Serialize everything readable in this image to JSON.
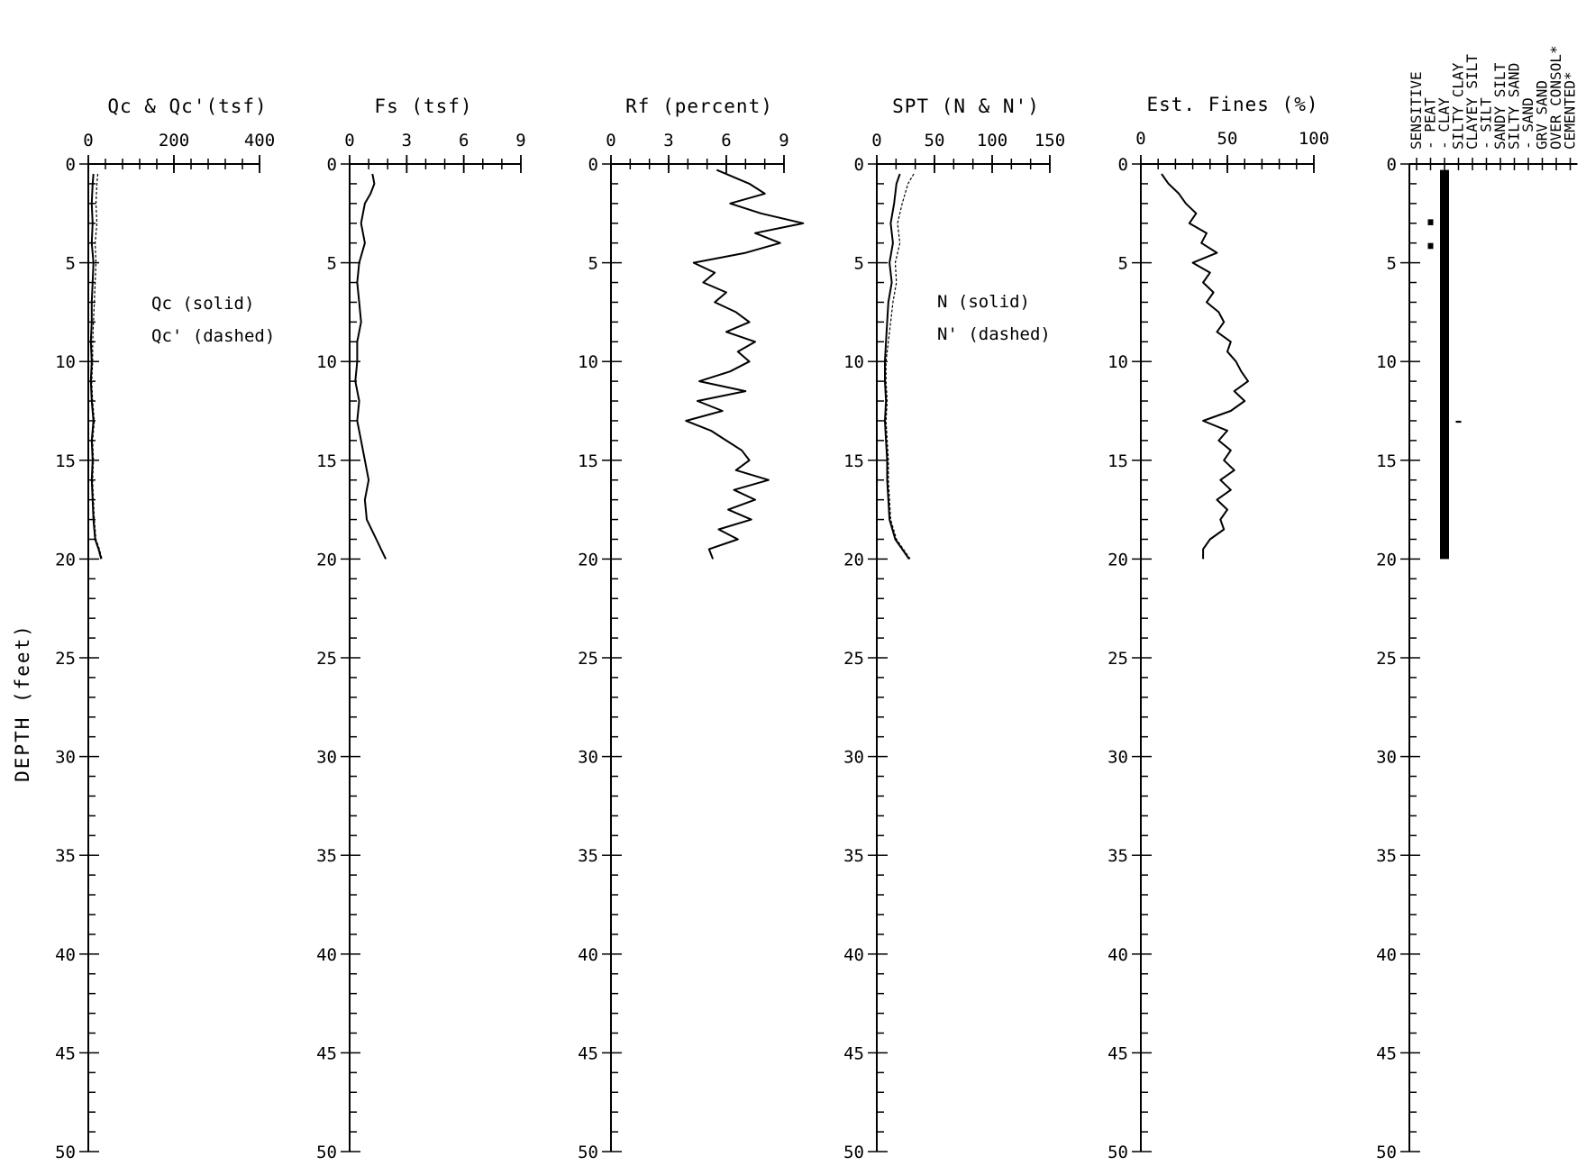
{
  "figure": {
    "depth_label": "DEPTH (feet)",
    "depth_ticks": [
      0,
      5,
      10,
      15,
      20,
      25,
      30,
      35,
      40,
      45,
      50
    ],
    "depth_range": [
      0,
      50
    ]
  },
  "chart_data": [
    {
      "type": "line",
      "title": "Qc & Qc'(tsf)",
      "xlim": [
        0,
        400
      ],
      "x_ticks": [
        "0",
        "200",
        "400"
      ],
      "legend": [
        "Qc (solid)",
        "Qc' (dashed)"
      ],
      "series": [
        {
          "name": "Qc (solid)",
          "style": "solid",
          "depth": [
            0.5,
            1,
            2,
            3,
            4,
            5,
            6,
            7,
            8,
            9,
            10,
            11,
            12,
            13,
            14,
            15,
            16,
            17,
            18,
            19,
            19.5,
            20
          ],
          "x": [
            12,
            10,
            8,
            10,
            8,
            12,
            10,
            8,
            8,
            6,
            8,
            6,
            8,
            12,
            8,
            10,
            8,
            10,
            12,
            16,
            24,
            30
          ]
        },
        {
          "name": "Qc' (dashed)",
          "style": "dashed",
          "depth": [
            0.5,
            1,
            2,
            3,
            4,
            5,
            6,
            7,
            8,
            9,
            10,
            11,
            12,
            13,
            14,
            15,
            16,
            17,
            18,
            19,
            19.5,
            20
          ],
          "x": [
            22,
            20,
            18,
            20,
            16,
            18,
            16,
            14,
            12,
            10,
            10,
            8,
            10,
            14,
            10,
            12,
            10,
            12,
            14,
            18,
            26,
            32
          ]
        }
      ]
    },
    {
      "type": "line",
      "title": "Fs (tsf)",
      "xlim": [
        0,
        9
      ],
      "x_ticks": [
        "0",
        "3",
        "6",
        "9"
      ],
      "series": [
        {
          "name": "",
          "style": "solid",
          "depth": [
            0.5,
            1,
            1.5,
            2,
            3,
            4,
            5,
            6,
            7,
            8,
            9,
            10,
            11,
            12,
            13,
            14,
            15,
            16,
            17,
            18,
            19,
            20
          ],
          "x": [
            1.2,
            1.3,
            1.1,
            0.8,
            0.6,
            0.8,
            0.5,
            0.4,
            0.5,
            0.6,
            0.4,
            0.4,
            0.3,
            0.5,
            0.4,
            0.6,
            0.8,
            1.0,
            0.8,
            0.9,
            1.4,
            1.9
          ]
        }
      ]
    },
    {
      "type": "line",
      "title": "Rf (percent)",
      "xlim": [
        0,
        9
      ],
      "x_ticks": [
        "0",
        "3",
        "6",
        "9"
      ],
      "series": [
        {
          "name": "",
          "style": "solid",
          "depth": [
            0.3,
            1,
            1.5,
            2,
            2.5,
            3,
            3.5,
            4,
            4.5,
            5,
            5.5,
            6,
            6.5,
            7,
            7.5,
            8,
            8.5,
            9,
            9.5,
            10,
            10.5,
            11,
            11.5,
            12,
            12.5,
            13,
            13.5,
            14,
            14.5,
            15,
            15.5,
            16,
            16.5,
            17,
            17.5,
            18,
            18.5,
            19,
            19.5,
            20
          ],
          "x": [
            5.5,
            7.2,
            8.0,
            6.2,
            7.8,
            10.0,
            7.5,
            8.8,
            7.0,
            4.3,
            5.4,
            4.8,
            6.0,
            5.4,
            6.5,
            7.2,
            6.0,
            7.5,
            6.6,
            7.2,
            6.2,
            4.6,
            7.0,
            4.5,
            5.8,
            3.9,
            5.2,
            6.0,
            6.8,
            7.2,
            6.5,
            8.2,
            6.4,
            7.5,
            6.1,
            7.3,
            5.6,
            6.6,
            5.1,
            5.3
          ]
        }
      ]
    },
    {
      "type": "line",
      "title": "SPT (N & N')",
      "xlim": [
        0,
        150
      ],
      "x_ticks": [
        "0",
        "50",
        "100",
        "150"
      ],
      "legend": [
        "N (solid)",
        "N' (dashed)"
      ],
      "series": [
        {
          "name": "N (solid)",
          "style": "solid",
          "depth": [
            0.5,
            1,
            2,
            3,
            4,
            5,
            6,
            7,
            8,
            9,
            10,
            11,
            12,
            13,
            14,
            15,
            16,
            17,
            18,
            19,
            19.5,
            20
          ],
          "x": [
            20,
            17,
            15,
            12,
            14,
            11,
            13,
            10,
            9,
            8,
            7,
            7,
            8,
            7,
            8,
            9,
            9,
            10,
            11,
            16,
            22,
            28
          ]
        },
        {
          "name": "N' (dashed)",
          "style": "dashed",
          "depth": [
            0.5,
            1,
            2,
            3,
            4,
            5,
            6,
            7,
            8,
            9,
            10,
            11,
            12,
            13,
            14,
            15,
            16,
            17,
            18,
            19,
            19.5,
            20
          ],
          "x": [
            32,
            27,
            22,
            18,
            20,
            16,
            17,
            14,
            12,
            10,
            8,
            8,
            9,
            8,
            9,
            10,
            10,
            11,
            12,
            17,
            23,
            29
          ]
        }
      ]
    },
    {
      "type": "line",
      "title": "Est. Fines (%)",
      "xlim": [
        0,
        100
      ],
      "x_ticks": [
        "0",
        "50",
        "100"
      ],
      "series": [
        {
          "name": "",
          "style": "solid",
          "depth": [
            0.5,
            1,
            1.5,
            2,
            2.5,
            3,
            3.5,
            4,
            4.5,
            5,
            5.5,
            6,
            6.5,
            7,
            7.5,
            8,
            8.5,
            9,
            9.5,
            10,
            10.5,
            11,
            11.5,
            12,
            12.5,
            13,
            13.5,
            14,
            14.5,
            15,
            15.5,
            16,
            16.5,
            17,
            17.5,
            18,
            18.5,
            19,
            19.5,
            20
          ],
          "x": [
            12,
            16,
            22,
            26,
            32,
            28,
            38,
            35,
            44,
            30,
            40,
            36,
            42,
            38,
            45,
            48,
            44,
            52,
            50,
            55,
            58,
            62,
            54,
            60,
            52,
            36,
            50,
            45,
            52,
            48,
            54,
            46,
            52,
            44,
            50,
            46,
            48,
            40,
            36,
            36
          ]
        }
      ]
    },
    {
      "type": "bar",
      "title": "",
      "soil_types": [
        "SENSITIVE",
        "- PEAT",
        "- CLAY",
        "SILTY CLAY",
        "CLAYEY SILT",
        "- SILT",
        "SANDY SILT",
        "SILTY SAND",
        "- SAND",
        "GRV SAND",
        "OVER CONSOL*",
        "CEMENTED*"
      ],
      "segments": [
        {
          "soil": "CLAY",
          "depth_from": 0.3,
          "depth_to": 20
        },
        {
          "soil": "PEAT",
          "depth_from": 2.8,
          "depth_to": 3.1
        },
        {
          "soil": "PEAT",
          "depth_from": 4.0,
          "depth_to": 4.3
        },
        {
          "soil": "SILTY CLAY",
          "depth_from": 13.0,
          "depth_to": 13.1
        }
      ]
    }
  ]
}
